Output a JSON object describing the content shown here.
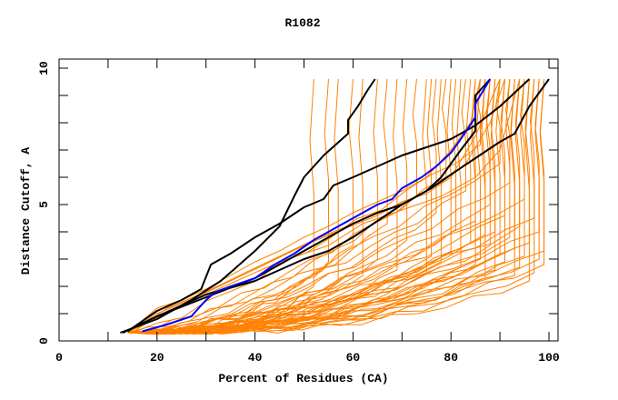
{
  "chart_data": {
    "type": "line",
    "title": "R1082",
    "xlabel": "Percent of Residues (CA)",
    "ylabel": "Distance Cutoff, A",
    "xlim": [
      0,
      100
    ],
    "ylim": [
      0,
      10
    ],
    "x_ticks": [
      0,
      20,
      40,
      60,
      80,
      100
    ],
    "x_tick_labels": [
      "0",
      "20",
      "40",
      "60",
      "80",
      "100"
    ],
    "x_minor_ticks": [
      10,
      30,
      50,
      70,
      90
    ],
    "y_ticks": [
      0,
      5,
      10
    ],
    "y_tick_labels": [
      "0",
      "5",
      "10"
    ],
    "y_minor_ticks": [
      1,
      2,
      3,
      4,
      6,
      7,
      8,
      9
    ],
    "grid": false,
    "legend": "none",
    "colors": {
      "highlight": "#0000ff",
      "reference": "#000000",
      "models": "#ff8000"
    },
    "series": [
      {
        "name": "black-1",
        "color": "#000000",
        "points": [
          [
            12.5,
            0.3
          ],
          [
            20,
            0.8
          ],
          [
            27,
            1.5
          ],
          [
            33,
            2.2
          ],
          [
            40,
            3.3
          ],
          [
            45,
            4.2
          ],
          [
            48,
            5.3
          ],
          [
            50,
            6.0
          ],
          [
            54,
            6.8
          ],
          [
            59,
            7.6
          ],
          [
            59,
            8.1
          ],
          [
            61,
            8.6
          ],
          [
            63,
            9.2
          ],
          [
            64.5,
            9.6
          ]
        ]
      },
      {
        "name": "black-2",
        "color": "#000000",
        "points": [
          [
            14,
            0.35
          ],
          [
            20,
            1.1
          ],
          [
            25,
            1.5
          ],
          [
            29,
            1.9
          ],
          [
            31,
            2.8
          ],
          [
            35,
            3.2
          ],
          [
            40,
            3.8
          ],
          [
            45,
            4.3
          ],
          [
            50,
            4.9
          ],
          [
            54,
            5.2
          ],
          [
            56,
            5.7
          ],
          [
            60,
            6.0
          ],
          [
            65,
            6.4
          ],
          [
            70,
            6.8
          ],
          [
            80,
            7.4
          ],
          [
            85,
            7.9
          ],
          [
            90,
            8.6
          ],
          [
            93,
            9.1
          ],
          [
            96,
            9.6
          ]
        ]
      },
      {
        "name": "black-3",
        "color": "#000000",
        "points": [
          [
            13,
            0.3
          ],
          [
            20,
            0.9
          ],
          [
            30,
            1.7
          ],
          [
            40,
            2.2
          ],
          [
            50,
            3.0
          ],
          [
            55,
            3.3
          ],
          [
            60,
            3.8
          ],
          [
            65,
            4.4
          ],
          [
            70,
            5.0
          ],
          [
            76,
            5.6
          ],
          [
            80,
            6.1
          ],
          [
            85,
            6.7
          ],
          [
            90,
            7.3
          ],
          [
            93,
            7.6
          ],
          [
            96,
            8.6
          ],
          [
            100,
            9.6
          ]
        ]
      },
      {
        "name": "black-4",
        "color": "#000000",
        "points": [
          [
            13,
            0.3
          ],
          [
            20,
            0.9
          ],
          [
            30,
            1.6
          ],
          [
            40,
            2.3
          ],
          [
            45,
            2.8
          ],
          [
            50,
            3.3
          ],
          [
            55,
            3.8
          ],
          [
            60,
            4.3
          ],
          [
            65,
            4.7
          ],
          [
            70,
            5.0
          ],
          [
            75,
            5.5
          ],
          [
            78,
            6.0
          ],
          [
            80,
            6.5
          ],
          [
            82,
            7.0
          ],
          [
            85,
            7.7
          ],
          [
            85,
            9.0
          ],
          [
            88,
            9.6
          ]
        ]
      },
      {
        "name": "blue",
        "color": "#0000ff",
        "points": [
          [
            17,
            0.35
          ],
          [
            22,
            0.6
          ],
          [
            27,
            0.9
          ],
          [
            30,
            1.5
          ],
          [
            32,
            1.8
          ],
          [
            35,
            2.0
          ],
          [
            40,
            2.3
          ],
          [
            44,
            2.8
          ],
          [
            48,
            3.2
          ],
          [
            52,
            3.7
          ],
          [
            56,
            4.1
          ],
          [
            60,
            4.5
          ],
          [
            65,
            5.0
          ],
          [
            68,
            5.2
          ],
          [
            70,
            5.6
          ],
          [
            74,
            6.0
          ],
          [
            77,
            6.4
          ],
          [
            80,
            6.9
          ],
          [
            82,
            7.4
          ],
          [
            85,
            8.2
          ],
          [
            85,
            8.7
          ],
          [
            88,
            9.6
          ]
        ]
      }
    ],
    "orange_models": [
      {
        "end_x": 99,
        "knee_y": 2.8,
        "top_y": 9.6,
        "exp": 2.2
      },
      {
        "end_x": 99,
        "knee_y": 3.3,
        "top_y": 9.6,
        "exp": 2.0
      },
      {
        "end_x": 98,
        "knee_y": 4.0,
        "top_y": 9.6,
        "exp": 1.8
      },
      {
        "end_x": 98,
        "knee_y": 3.0,
        "top_y": 9.6,
        "exp": 2.4
      },
      {
        "end_x": 97,
        "knee_y": 2.5,
        "top_y": 9.6,
        "exp": 2.6
      },
      {
        "end_x": 97,
        "knee_y": 4.5,
        "top_y": 9.6,
        "exp": 1.7
      },
      {
        "end_x": 96,
        "knee_y": 3.6,
        "top_y": 9.6,
        "exp": 2.1
      },
      {
        "end_x": 96,
        "knee_y": 2.2,
        "top_y": 9.6,
        "exp": 2.8
      },
      {
        "end_x": 95,
        "knee_y": 5.2,
        "top_y": 9.6,
        "exp": 1.5
      },
      {
        "end_x": 95,
        "knee_y": 3.1,
        "top_y": 9.6,
        "exp": 2.3
      },
      {
        "end_x": 94,
        "knee_y": 2.7,
        "top_y": 9.6,
        "exp": 2.5
      },
      {
        "end_x": 94,
        "knee_y": 4.2,
        "top_y": 9.6,
        "exp": 1.9
      },
      {
        "end_x": 93,
        "knee_y": 3.4,
        "top_y": 9.6,
        "exp": 2.2
      },
      {
        "end_x": 93,
        "knee_y": 2.4,
        "top_y": 9.6,
        "exp": 2.7
      },
      {
        "end_x": 92,
        "knee_y": 5.8,
        "top_y": 9.6,
        "exp": 1.4
      },
      {
        "end_x": 92,
        "knee_y": 3.8,
        "top_y": 9.6,
        "exp": 2.0
      },
      {
        "end_x": 91,
        "knee_y": 2.9,
        "top_y": 9.6,
        "exp": 2.4
      },
      {
        "end_x": 91,
        "knee_y": 4.6,
        "top_y": 9.6,
        "exp": 1.7
      },
      {
        "end_x": 90,
        "knee_y": 3.2,
        "top_y": 9.6,
        "exp": 2.2
      },
      {
        "end_x": 90,
        "knee_y": 6.5,
        "top_y": 9.6,
        "exp": 1.3
      },
      {
        "end_x": 89,
        "knee_y": 2.6,
        "top_y": 9.6,
        "exp": 2.6
      },
      {
        "end_x": 89,
        "knee_y": 4.0,
        "top_y": 9.6,
        "exp": 1.9
      },
      {
        "end_x": 88,
        "knee_y": 3.5,
        "top_y": 9.6,
        "exp": 2.1
      },
      {
        "end_x": 88,
        "knee_y": 5.0,
        "top_y": 9.6,
        "exp": 1.6
      },
      {
        "end_x": 87,
        "knee_y": 2.3,
        "top_y": 9.6,
        "exp": 2.8
      },
      {
        "end_x": 87,
        "knee_y": 3.9,
        "top_y": 9.6,
        "exp": 2.0
      },
      {
        "end_x": 86,
        "knee_y": 7.2,
        "top_y": 9.6,
        "exp": 1.2
      },
      {
        "end_x": 86,
        "knee_y": 3.0,
        "top_y": 9.6,
        "exp": 2.3
      },
      {
        "end_x": 85,
        "knee_y": 4.4,
        "top_y": 9.6,
        "exp": 1.8
      },
      {
        "end_x": 85,
        "knee_y": 2.8,
        "top_y": 9.6,
        "exp": 2.5
      },
      {
        "end_x": 84,
        "knee_y": 3.6,
        "top_y": 9.6,
        "exp": 2.1
      },
      {
        "end_x": 83,
        "knee_y": 5.5,
        "top_y": 9.6,
        "exp": 1.5
      },
      {
        "end_x": 82,
        "knee_y": 2.7,
        "top_y": 9.6,
        "exp": 2.6
      },
      {
        "end_x": 81,
        "knee_y": 4.1,
        "top_y": 9.6,
        "exp": 1.9
      },
      {
        "end_x": 80,
        "knee_y": 3.3,
        "top_y": 9.6,
        "exp": 2.2
      },
      {
        "end_x": 79,
        "knee_y": 6.0,
        "top_y": 9.6,
        "exp": 1.4
      },
      {
        "end_x": 78,
        "knee_y": 2.9,
        "top_y": 9.6,
        "exp": 2.4
      },
      {
        "end_x": 77,
        "knee_y": 4.7,
        "top_y": 9.6,
        "exp": 1.7
      },
      {
        "end_x": 76,
        "knee_y": 3.1,
        "top_y": 9.6,
        "exp": 2.3
      },
      {
        "end_x": 75,
        "knee_y": 2.5,
        "top_y": 9.6,
        "exp": 2.7
      },
      {
        "end_x": 73,
        "knee_y": 5.3,
        "top_y": 9.6,
        "exp": 1.5
      },
      {
        "end_x": 71,
        "knee_y": 3.7,
        "top_y": 9.6,
        "exp": 2.0
      },
      {
        "end_x": 69,
        "knee_y": 2.6,
        "top_y": 9.6,
        "exp": 2.5
      },
      {
        "end_x": 67,
        "knee_y": 4.3,
        "top_y": 9.6,
        "exp": 1.8
      },
      {
        "end_x": 65,
        "knee_y": 3.0,
        "top_y": 9.6,
        "exp": 2.2
      },
      {
        "end_x": 62,
        "knee_y": 2.4,
        "top_y": 9.6,
        "exp": 2.6
      },
      {
        "end_x": 60,
        "knee_y": 3.5,
        "top_y": 9.6,
        "exp": 2.0
      },
      {
        "end_x": 57,
        "knee_y": 2.2,
        "top_y": 9.6,
        "exp": 2.7
      },
      {
        "end_x": 55,
        "knee_y": 2.9,
        "top_y": 9.6,
        "exp": 2.3
      },
      {
        "end_x": 52,
        "knee_y": 2.0,
        "top_y": 9.6,
        "exp": 2.8
      }
    ],
    "orange_upper_models": [
      [
        [
          14,
          0.3
        ],
        [
          20,
          1.2
        ],
        [
          25,
          1.5
        ],
        [
          30,
          1.9
        ],
        [
          35,
          2.4
        ],
        [
          40,
          2.9
        ],
        [
          45,
          3.3
        ],
        [
          50,
          3.8
        ],
        [
          55,
          4.2
        ],
        [
          60,
          4.7
        ],
        [
          65,
          5.1
        ],
        [
          70,
          5.5
        ],
        [
          75,
          6.0
        ],
        [
          80,
          7.0
        ],
        [
          84,
          8.0
        ],
        [
          86,
          9.6
        ]
      ],
      [
        [
          14,
          0.3
        ],
        [
          20,
          1.0
        ],
        [
          28,
          1.6
        ],
        [
          35,
          2.2
        ],
        [
          42,
          2.8
        ],
        [
          50,
          3.5
        ],
        [
          58,
          4.1
        ],
        [
          65,
          4.6
        ],
        [
          70,
          5.1
        ],
        [
          75,
          5.4
        ],
        [
          80,
          6.0
        ],
        [
          85,
          7.5
        ],
        [
          90,
          9.6
        ]
      ],
      [
        [
          15,
          0.3
        ],
        [
          22,
          1.2
        ],
        [
          30,
          1.8
        ],
        [
          38,
          2.5
        ],
        [
          45,
          3.1
        ],
        [
          52,
          3.7
        ],
        [
          60,
          4.3
        ],
        [
          68,
          4.9
        ],
        [
          72,
          5.2
        ],
        [
          78,
          5.8
        ],
        [
          83,
          6.5
        ],
        [
          88,
          8.0
        ],
        [
          91,
          9.6
        ]
      ],
      [
        [
          14,
          0.3
        ],
        [
          25,
          1.3
        ],
        [
          35,
          2.1
        ],
        [
          45,
          2.9
        ],
        [
          55,
          3.5
        ],
        [
          62,
          4.3
        ],
        [
          70,
          4.8
        ],
        [
          78,
          5.3
        ],
        [
          85,
          6.0
        ],
        [
          90,
          7.0
        ],
        [
          94,
          9.6
        ]
      ]
    ]
  }
}
